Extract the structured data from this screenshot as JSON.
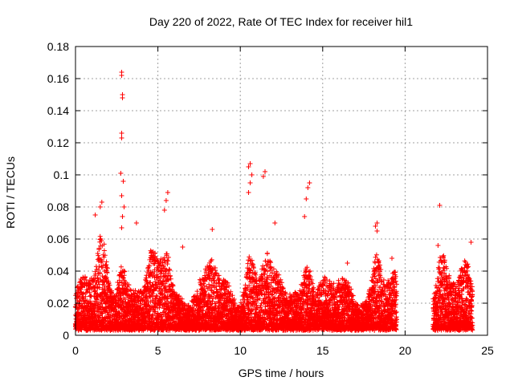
{
  "chart_data": {
    "type": "scatter",
    "title": "Day 220 of 2022, Rate Of TEC Index for receiver hil1",
    "xlabel": "GPS time / hours",
    "ylabel": "ROTI / TECUs",
    "xlim": [
      0,
      25
    ],
    "ylim": [
      0,
      0.18
    ],
    "xticks": [
      "0",
      "5",
      "10",
      "15",
      "20",
      "25"
    ],
    "yticks": [
      "0",
      "0.02",
      "0.04",
      "0.06",
      "0.08",
      "0.1",
      "0.12",
      "0.14",
      "0.16",
      "0.18"
    ],
    "grid": true,
    "marker": "+",
    "color": "#ff0000",
    "series": [
      {
        "notable_points": [
          {
            "x": 2.8,
            "y": 0.164
          },
          {
            "x": 2.8,
            "y": 0.162
          },
          {
            "x": 2.85,
            "y": 0.15
          },
          {
            "x": 2.85,
            "y": 0.148
          },
          {
            "x": 2.8,
            "y": 0.126
          },
          {
            "x": 2.8,
            "y": 0.123
          },
          {
            "x": 2.75,
            "y": 0.101
          },
          {
            "x": 2.9,
            "y": 0.096
          },
          {
            "x": 2.8,
            "y": 0.087
          },
          {
            "x": 2.95,
            "y": 0.08
          },
          {
            "x": 2.85,
            "y": 0.074
          },
          {
            "x": 2.8,
            "y": 0.067
          },
          {
            "x": 10.6,
            "y": 0.107
          },
          {
            "x": 10.5,
            "y": 0.105
          },
          {
            "x": 10.7,
            "y": 0.1
          },
          {
            "x": 10.6,
            "y": 0.095
          },
          {
            "x": 10.5,
            "y": 0.089
          },
          {
            "x": 11.5,
            "y": 0.102
          },
          {
            "x": 11.4,
            "y": 0.099
          },
          {
            "x": 14.2,
            "y": 0.095
          },
          {
            "x": 14.1,
            "y": 0.092
          },
          {
            "x": 14.0,
            "y": 0.085
          },
          {
            "x": 13.9,
            "y": 0.074
          },
          {
            "x": 5.6,
            "y": 0.089
          },
          {
            "x": 5.5,
            "y": 0.084
          },
          {
            "x": 5.4,
            "y": 0.078
          },
          {
            "x": 1.6,
            "y": 0.083
          },
          {
            "x": 1.5,
            "y": 0.08
          },
          {
            "x": 1.2,
            "y": 0.075
          },
          {
            "x": 18.3,
            "y": 0.07
          },
          {
            "x": 18.2,
            "y": 0.068
          },
          {
            "x": 18.3,
            "y": 0.065
          },
          {
            "x": 22.1,
            "y": 0.081
          },
          {
            "x": 22.0,
            "y": 0.056
          },
          {
            "x": 24.0,
            "y": 0.058
          },
          {
            "x": 8.3,
            "y": 0.066
          },
          {
            "x": 12.1,
            "y": 0.07
          },
          {
            "x": 3.7,
            "y": 0.07
          },
          {
            "x": 6.5,
            "y": 0.055
          },
          {
            "x": 19.2,
            "y": 0.048
          },
          {
            "x": 16.5,
            "y": 0.045
          }
        ],
        "dense_bands": [
          {
            "x_start": 0.0,
            "x_end": 19.5,
            "y_min": 0.003,
            "y_max": 0.045
          },
          {
            "x_start": 21.7,
            "x_end": 24.1,
            "y_min": 0.003,
            "y_max": 0.055
          }
        ],
        "data_gap": [
          19.5,
          21.7
        ]
      }
    ]
  }
}
